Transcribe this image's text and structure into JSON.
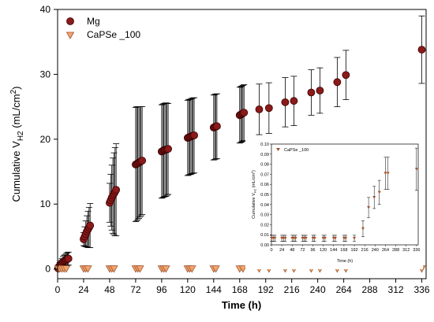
{
  "chart_data": [
    {
      "type": "scatter",
      "xlabel": "Time (h)",
      "ylabel": "Cumulative V",
      "ylabel_sub": "H2",
      "ylabel_unit": " (mL/cm",
      "ylabel_sup": "2",
      "ylabel_close": ")",
      "xlim": [
        0,
        340
      ],
      "ylim": [
        -1.5,
        40
      ],
      "xticks": [
        0,
        24,
        48,
        72,
        96,
        120,
        144,
        168,
        192,
        216,
        240,
        264,
        288,
        312,
        336
      ],
      "yticks": [
        0,
        10,
        20,
        30,
        40
      ],
      "legend_position": "top-left",
      "series": [
        {
          "name": "Mg",
          "marker": "circle",
          "color": "#8b1a1a",
          "points": [
            {
              "x": 0.5,
              "y": 0.1,
              "err": 0.3
            },
            {
              "x": 1,
              "y": 0.3,
              "err": 0.4
            },
            {
              "x": 2,
              "y": 0.5,
              "err": 0.5
            },
            {
              "x": 3,
              "y": 0.7,
              "err": 0.6
            },
            {
              "x": 4,
              "y": 0.9,
              "err": 0.7
            },
            {
              "x": 5,
              "y": 1.1,
              "err": 0.8
            },
            {
              "x": 6,
              "y": 1.2,
              "err": 0.9
            },
            {
              "x": 7,
              "y": 1.3,
              "err": 0.9
            },
            {
              "x": 8,
              "y": 1.4,
              "err": 1.0
            },
            {
              "x": 9,
              "y": 1.5,
              "err": 1.0
            },
            {
              "x": 10,
              "y": 1.6,
              "err": 1.0
            },
            {
              "x": 24,
              "y": 4.6,
              "err": 1.0
            },
            {
              "x": 25,
              "y": 5.0,
              "err": 1.5
            },
            {
              "x": 26,
              "y": 5.4,
              "err": 2.0
            },
            {
              "x": 27,
              "y": 5.8,
              "err": 2.4
            },
            {
              "x": 28,
              "y": 6.1,
              "err": 2.8
            },
            {
              "x": 29,
              "y": 6.4,
              "err": 3.1
            },
            {
              "x": 30,
              "y": 6.7,
              "err": 3.4
            },
            {
              "x": 48,
              "y": 10.2,
              "err": 3.0
            },
            {
              "x": 49,
              "y": 10.6,
              "err": 4.0
            },
            {
              "x": 50,
              "y": 11.0,
              "err": 5.0
            },
            {
              "x": 51,
              "y": 11.3,
              "err": 5.8
            },
            {
              "x": 52,
              "y": 11.6,
              "err": 6.3
            },
            {
              "x": 53,
              "y": 11.9,
              "err": 6.8
            },
            {
              "x": 54,
              "y": 12.2,
              "err": 7.1
            },
            {
              "x": 72,
              "y": 16.1,
              "err": 8.8
            },
            {
              "x": 73,
              "y": 16.2,
              "err": 8.8
            },
            {
              "x": 74,
              "y": 16.3,
              "err": 8.7
            },
            {
              "x": 75,
              "y": 16.4,
              "err": 8.6
            },
            {
              "x": 76,
              "y": 16.5,
              "err": 8.5
            },
            {
              "x": 77,
              "y": 16.6,
              "err": 8.4
            },
            {
              "x": 78,
              "y": 16.7,
              "err": 8.3
            },
            {
              "x": 96,
              "y": 18.1,
              "err": 7.2
            },
            {
              "x": 97,
              "y": 18.2,
              "err": 7.2
            },
            {
              "x": 98,
              "y": 18.3,
              "err": 7.2
            },
            {
              "x": 99,
              "y": 18.35,
              "err": 7.2
            },
            {
              "x": 100,
              "y": 18.4,
              "err": 7.2
            },
            {
              "x": 101,
              "y": 18.45,
              "err": 7.1
            },
            {
              "x": 102,
              "y": 18.5,
              "err": 7.0
            },
            {
              "x": 120,
              "y": 20.2,
              "err": 5.8
            },
            {
              "x": 121,
              "y": 20.3,
              "err": 5.8
            },
            {
              "x": 122,
              "y": 20.35,
              "err": 5.8
            },
            {
              "x": 123,
              "y": 20.4,
              "err": 5.8
            },
            {
              "x": 124,
              "y": 20.5,
              "err": 5.8
            },
            {
              "x": 125,
              "y": 20.55,
              "err": 5.8
            },
            {
              "x": 126,
              "y": 20.6,
              "err": 5.8
            },
            {
              "x": 144,
              "y": 21.8,
              "err": 5.0
            },
            {
              "x": 145,
              "y": 21.9,
              "err": 5.0
            },
            {
              "x": 146,
              "y": 21.95,
              "err": 5.0
            },
            {
              "x": 147,
              "y": 22.0,
              "err": 5.0
            },
            {
              "x": 168,
              "y": 23.7,
              "err": 4.3
            },
            {
              "x": 169,
              "y": 23.8,
              "err": 4.3
            },
            {
              "x": 170,
              "y": 23.9,
              "err": 4.3
            },
            {
              "x": 171,
              "y": 24.0,
              "err": 4.3
            },
            {
              "x": 172,
              "y": 24.1,
              "err": 4.3
            },
            {
              "x": 186,
              "y": 24.6,
              "err": 3.9
            },
            {
              "x": 195,
              "y": 24.8,
              "err": 3.9
            },
            {
              "x": 210,
              "y": 25.7,
              "err": 3.8
            },
            {
              "x": 218,
              "y": 25.9,
              "err": 3.8
            },
            {
              "x": 234,
              "y": 27.2,
              "err": 3.5
            },
            {
              "x": 242,
              "y": 27.5,
              "err": 3.5
            },
            {
              "x": 258,
              "y": 28.8,
              "err": 3.8
            },
            {
              "x": 266,
              "y": 29.9,
              "err": 3.8
            },
            {
              "x": 336,
              "y": 33.8,
              "err": 5.2
            }
          ]
        },
        {
          "name": "CaPSe _100",
          "marker": "triangle-down",
          "color": "#f2a66e",
          "points": [
            {
              "x": 0.5,
              "y": 0
            },
            {
              "x": 2,
              "y": 0
            },
            {
              "x": 4,
              "y": 0
            },
            {
              "x": 6,
              "y": 0
            },
            {
              "x": 8,
              "y": 0
            },
            {
              "x": 24,
              "y": 0
            },
            {
              "x": 26,
              "y": 0
            },
            {
              "x": 28,
              "y": 0
            },
            {
              "x": 48,
              "y": 0
            },
            {
              "x": 50,
              "y": 0
            },
            {
              "x": 52,
              "y": 0
            },
            {
              "x": 72,
              "y": 0
            },
            {
              "x": 74,
              "y": 0
            },
            {
              "x": 76,
              "y": 0
            },
            {
              "x": 96,
              "y": 0
            },
            {
              "x": 98,
              "y": 0
            },
            {
              "x": 100,
              "y": 0
            },
            {
              "x": 120,
              "y": 0
            },
            {
              "x": 122,
              "y": 0
            },
            {
              "x": 124,
              "y": 0
            },
            {
              "x": 144,
              "y": 0
            },
            {
              "x": 146,
              "y": 0
            },
            {
              "x": 168,
              "y": 0
            },
            {
              "x": 171,
              "y": 0
            },
            {
              "x": 186,
              "y": 0
            },
            {
              "x": 195,
              "y": 0
            },
            {
              "x": 210,
              "y": 0
            },
            {
              "x": 218,
              "y": 0
            },
            {
              "x": 234,
              "y": 0
            },
            {
              "x": 242,
              "y": 0
            },
            {
              "x": 258,
              "y": 0
            },
            {
              "x": 266,
              "y": 0
            },
            {
              "x": 336,
              "y": 0
            }
          ]
        }
      ]
    },
    {
      "type": "scatter",
      "role": "inset",
      "xlabel": "Time (h)",
      "ylabel": "Cumulative V",
      "ylabel_sub": "H2",
      "ylabel_unit": " (mL/cm",
      "ylabel_sup": "2",
      "ylabel_close": ")",
      "xlim": [
        0,
        340
      ],
      "ylim": [
        0,
        0.1
      ],
      "xticks": [
        0,
        24,
        48,
        72,
        96,
        120,
        144,
        168,
        192,
        216,
        240,
        264,
        288,
        312,
        336
      ],
      "yticks": [
        0.0,
        0.01,
        0.02,
        0.03,
        0.04,
        0.05,
        0.06,
        0.07,
        0.08,
        0.09,
        0.1
      ],
      "ytick_labels": [
        "0.00",
        "0.01",
        "0.02",
        "0.03",
        "0.04",
        "0.05",
        "0.06",
        "0.07",
        "0.08",
        "0.09",
        "0.10"
      ],
      "legend_position": "top-left",
      "series": [
        {
          "name": "CaPSe _100",
          "marker": "triangle-down",
          "color": "#a0522d",
          "points": [
            {
              "x": 0,
              "y": 0.0065,
              "err": 0.003
            },
            {
              "x": 4,
              "y": 0.0065,
              "err": 0.003
            },
            {
              "x": 8,
              "y": 0.0065,
              "err": 0.003
            },
            {
              "x": 24,
              "y": 0.0065,
              "err": 0.003
            },
            {
              "x": 28,
              "y": 0.0065,
              "err": 0.003
            },
            {
              "x": 32,
              "y": 0.0065,
              "err": 0.003
            },
            {
              "x": 48,
              "y": 0.0065,
              "err": 0.003
            },
            {
              "x": 52,
              "y": 0.0065,
              "err": 0.003
            },
            {
              "x": 56,
              "y": 0.0065,
              "err": 0.003
            },
            {
              "x": 72,
              "y": 0.0065,
              "err": 0.003
            },
            {
              "x": 76,
              "y": 0.0065,
              "err": 0.003
            },
            {
              "x": 80,
              "y": 0.0065,
              "err": 0.003
            },
            {
              "x": 96,
              "y": 0.0065,
              "err": 0.003
            },
            {
              "x": 100,
              "y": 0.0065,
              "err": 0.003
            },
            {
              "x": 120,
              "y": 0.0065,
              "err": 0.003
            },
            {
              "x": 124,
              "y": 0.0065,
              "err": 0.003
            },
            {
              "x": 144,
              "y": 0.0065,
              "err": 0.003
            },
            {
              "x": 148,
              "y": 0.0065,
              "err": 0.003
            },
            {
              "x": 168,
              "y": 0.0065,
              "err": 0.003
            },
            {
              "x": 172,
              "y": 0.0065,
              "err": 0.003
            },
            {
              "x": 192,
              "y": 0.0065,
              "err": 0.003
            },
            {
              "x": 212,
              "y": 0.016,
              "err": 0.008
            },
            {
              "x": 225,
              "y": 0.037,
              "err": 0.01
            },
            {
              "x": 238,
              "y": 0.047,
              "err": 0.011
            },
            {
              "x": 250,
              "y": 0.052,
              "err": 0.012
            },
            {
              "x": 264,
              "y": 0.071,
              "err": 0.016
            },
            {
              "x": 270,
              "y": 0.071,
              "err": 0.016
            },
            {
              "x": 336,
              "y": 0.075,
              "err": 0.021
            }
          ]
        }
      ]
    }
  ]
}
